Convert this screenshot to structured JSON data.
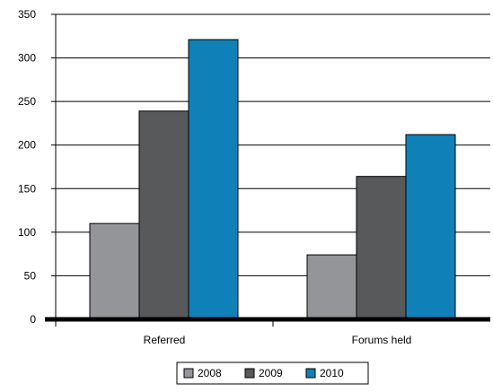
{
  "chart_data": {
    "type": "bar",
    "categories": [
      "Referred",
      "Forums held"
    ],
    "series": [
      {
        "name": "2008",
        "color": "#939598",
        "values": [
          110,
          74
        ]
      },
      {
        "name": "2009",
        "color": "#58595b",
        "values": [
          239,
          164
        ]
      },
      {
        "name": "2010",
        "color": "#1080b8",
        "values": [
          321,
          212
        ]
      }
    ],
    "y_ticks": [
      "0",
      "50",
      "100",
      "150",
      "200",
      "250",
      "300",
      "350"
    ],
    "ylim": [
      0,
      350
    ],
    "grid": true,
    "legend_position": "bottom-center",
    "title": "",
    "xlabel": "",
    "ylabel": ""
  }
}
